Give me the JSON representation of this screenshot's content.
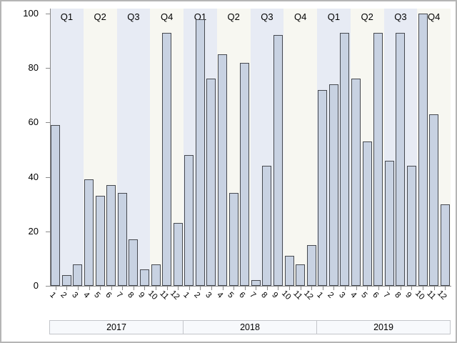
{
  "chart_data": {
    "type": "bar",
    "title": "",
    "xlabel": "",
    "ylabel": "",
    "ylim": [
      0,
      100
    ],
    "yticks": [
      0,
      20,
      40,
      60,
      80,
      100
    ],
    "grid": "off",
    "legend": "none",
    "quarter_labels": [
      "Q1",
      "Q2",
      "Q3",
      "Q4"
    ],
    "month_labels": [
      "1",
      "2",
      "3",
      "4",
      "5",
      "6",
      "7",
      "8",
      "9",
      "10",
      "11",
      "12"
    ],
    "years": [
      {
        "label": "2017",
        "values": [
          59,
          4,
          8,
          39,
          33,
          37,
          34,
          17,
          6,
          8,
          93,
          23
        ]
      },
      {
        "label": "2018",
        "values": [
          48,
          98,
          76,
          85,
          34,
          82,
          2,
          44,
          92,
          11,
          8,
          15
        ]
      },
      {
        "label": "2019",
        "values": [
          72,
          74,
          93,
          76,
          53,
          93,
          46,
          93,
          44,
          100,
          63,
          30
        ]
      }
    ],
    "colors": {
      "bar_fill": "#c8d2e2",
      "bar_border": "#46494f",
      "band_odd_quarter": "#e7ebf4",
      "band_even_quarter": "#f7f7f1",
      "axis_line": "#8a8a8a",
      "text": "#000000",
      "year_box_fill": "#f7f9fc",
      "year_box_border": "#c3c5ca",
      "figure_border": "#b5b5b5",
      "background": "#ffffff"
    }
  }
}
